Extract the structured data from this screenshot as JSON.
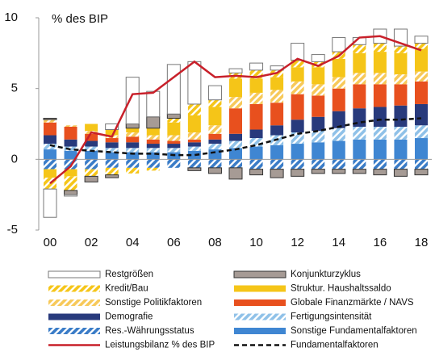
{
  "chart_data": {
    "type": "stacked_bar_line",
    "y_label": "% des BIP",
    "categories": [
      "00",
      null,
      "02",
      null,
      "04",
      null,
      "06",
      null,
      "08",
      null,
      "10",
      null,
      "12",
      null,
      "14",
      null,
      "16",
      null,
      "18"
    ],
    "ylim": [
      -5,
      10
    ],
    "yticks": [
      -5,
      0,
      5,
      10
    ],
    "series": [
      {
        "name": "Restgrößen",
        "color": "#ffffff",
        "edge": "#777777",
        "hatch": false,
        "values": [
          -2.0,
          -0.1,
          0.0,
          0.4,
          3.3,
          1.8,
          3.5,
          3.0,
          1.0,
          0.3,
          0.5,
          0.3,
          1.2,
          0.5,
          1.0,
          0.5,
          1.0,
          1.2,
          0.5
        ]
      },
      {
        "name": "Konjunkturzyklus",
        "color": "#a69b95",
        "edge": "#333333",
        "hatch": false,
        "values": [
          0.1,
          -0.3,
          -0.4,
          -0.2,
          0.3,
          0.8,
          0.3,
          -0.2,
          -0.4,
          -0.8,
          -0.4,
          -0.6,
          -0.5,
          -0.3,
          -0.3,
          -0.3,
          -0.4,
          -0.5,
          -0.4
        ]
      },
      {
        "name": "Kredit/Bau",
        "color": "#f5c518",
        "hatch": true,
        "values": [
          -0.8,
          -1.0,
          -0.5,
          -0.5,
          -0.4,
          -0.2,
          0.3,
          0.8,
          0.5,
          0.4,
          0.6,
          0.5,
          0.5,
          0.4,
          0.5,
          0.6,
          0.6,
          0.5,
          0.4
        ]
      },
      {
        "name": "Struktur. Haushaltssaldo",
        "color": "#f5c518",
        "hatch": false,
        "values": [
          -0.6,
          -0.5,
          0.5,
          0.4,
          0.3,
          0.5,
          0.9,
          1.2,
          1.3,
          1.3,
          1.0,
          0.9,
          1.0,
          1.2,
          1.3,
          1.4,
          1.5,
          1.5,
          1.6
        ]
      },
      {
        "name": "Sonstige Politikfaktoren",
        "color": "#f7c95a",
        "hatch": true,
        "values": [
          0.2,
          0.1,
          0.2,
          0.2,
          0.3,
          0.3,
          0.4,
          0.5,
          0.6,
          0.8,
          0.8,
          0.9,
          0.9,
          0.8,
          0.8,
          0.8,
          0.8,
          0.7,
          0.7
        ]
      },
      {
        "name": "Globale Finanzmärkte / NAVS",
        "color": "#e8501e",
        "hatch": false,
        "values": [
          0.9,
          0.9,
          0.5,
          0.3,
          0.4,
          0.3,
          0.2,
          0.2,
          0.4,
          1.8,
          1.8,
          1.6,
          1.8,
          1.5,
          1.6,
          1.7,
          1.6,
          1.5,
          1.6
        ]
      },
      {
        "name": "Demografie",
        "color": "#283a7c",
        "hatch": false,
        "values": [
          0.6,
          0.5,
          0.4,
          0.4,
          0.4,
          0.3,
          0.3,
          0.3,
          0.3,
          0.5,
          0.6,
          0.7,
          0.9,
          1.0,
          1.2,
          1.3,
          1.4,
          1.5,
          1.5
        ]
      },
      {
        "name": "Fertigungsintensität",
        "color": "#8fc1e8",
        "hatch": true,
        "values": [
          0.4,
          0.3,
          0.3,
          0.3,
          0.3,
          0.3,
          0.3,
          0.3,
          0.4,
          0.5,
          0.6,
          0.7,
          0.8,
          0.8,
          0.9,
          0.9,
          0.9,
          0.9,
          0.9
        ]
      },
      {
        "name": "Res.-Währungsstatus",
        "color": "#3a7cc7",
        "hatch": true,
        "values": [
          -0.7,
          -0.7,
          -0.7,
          -0.6,
          -0.6,
          -0.6,
          -0.6,
          -0.6,
          -0.6,
          -0.6,
          -0.7,
          -0.7,
          -0.7,
          -0.7,
          -0.7,
          -0.7,
          -0.7,
          -0.7,
          -0.7
        ]
      },
      {
        "name": "Sonstige Fundamentalfaktoren",
        "color": "#3f86d2",
        "hatch": false,
        "values": [
          0.7,
          0.6,
          0.6,
          0.5,
          0.5,
          0.5,
          0.5,
          0.6,
          0.7,
          0.8,
          0.9,
          1.0,
          1.1,
          1.2,
          1.3,
          1.4,
          1.4,
          1.4,
          1.5
        ]
      }
    ],
    "lines": [
      {
        "name": "Leistungsbilanz % des BIP",
        "color": "#c8202a",
        "dashed": false,
        "values": [
          -1.7,
          -0.5,
          1.9,
          1.6,
          4.6,
          4.7,
          5.8,
          6.9,
          5.8,
          5.9,
          5.8,
          6.1,
          7.1,
          6.6,
          7.3,
          8.6,
          8.7,
          8.2,
          7.7
        ]
      },
      {
        "name": "Fundamentalfaktoren",
        "color": "#111111",
        "dashed": true,
        "values": [
          1.0,
          0.7,
          0.6,
          0.5,
          0.4,
          0.4,
          0.3,
          0.3,
          0.5,
          0.7,
          1.0,
          1.4,
          1.8,
          2.0,
          2.3,
          2.6,
          2.8,
          2.8,
          2.9
        ]
      }
    ]
  }
}
